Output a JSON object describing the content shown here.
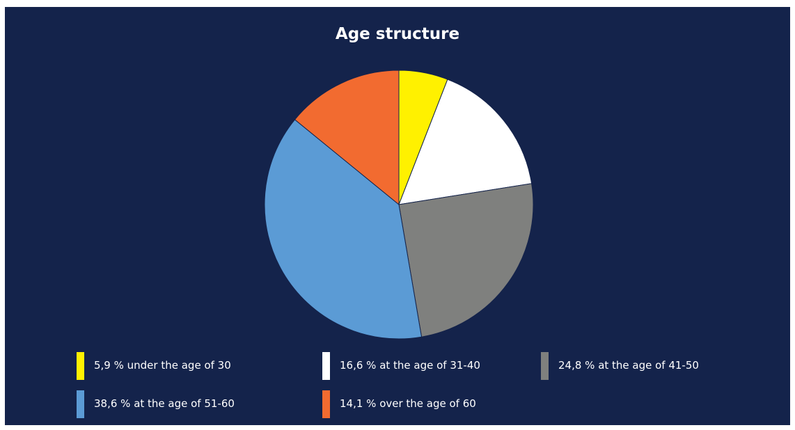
{
  "chart_data": {
    "type": "pie",
    "title": "Age structure",
    "slices": [
      {
        "label": "5,9 % under the age of 30",
        "value": 5.9,
        "color": "#fff100"
      },
      {
        "label": "16,6 % at the age of 31-40",
        "value": 16.6,
        "color": "#ffffff"
      },
      {
        "label": "24,8 % at the age of 41-50",
        "value": 24.8,
        "color": "#7f807e"
      },
      {
        "label": "38,6 % at the age of 51-60",
        "value": 38.6,
        "color": "#5b9bd5"
      },
      {
        "label": "14,1 % over the age of 60",
        "value": 14.1,
        "color": "#f26b30"
      }
    ],
    "legend_position": "bottom",
    "background": "#14234b"
  }
}
